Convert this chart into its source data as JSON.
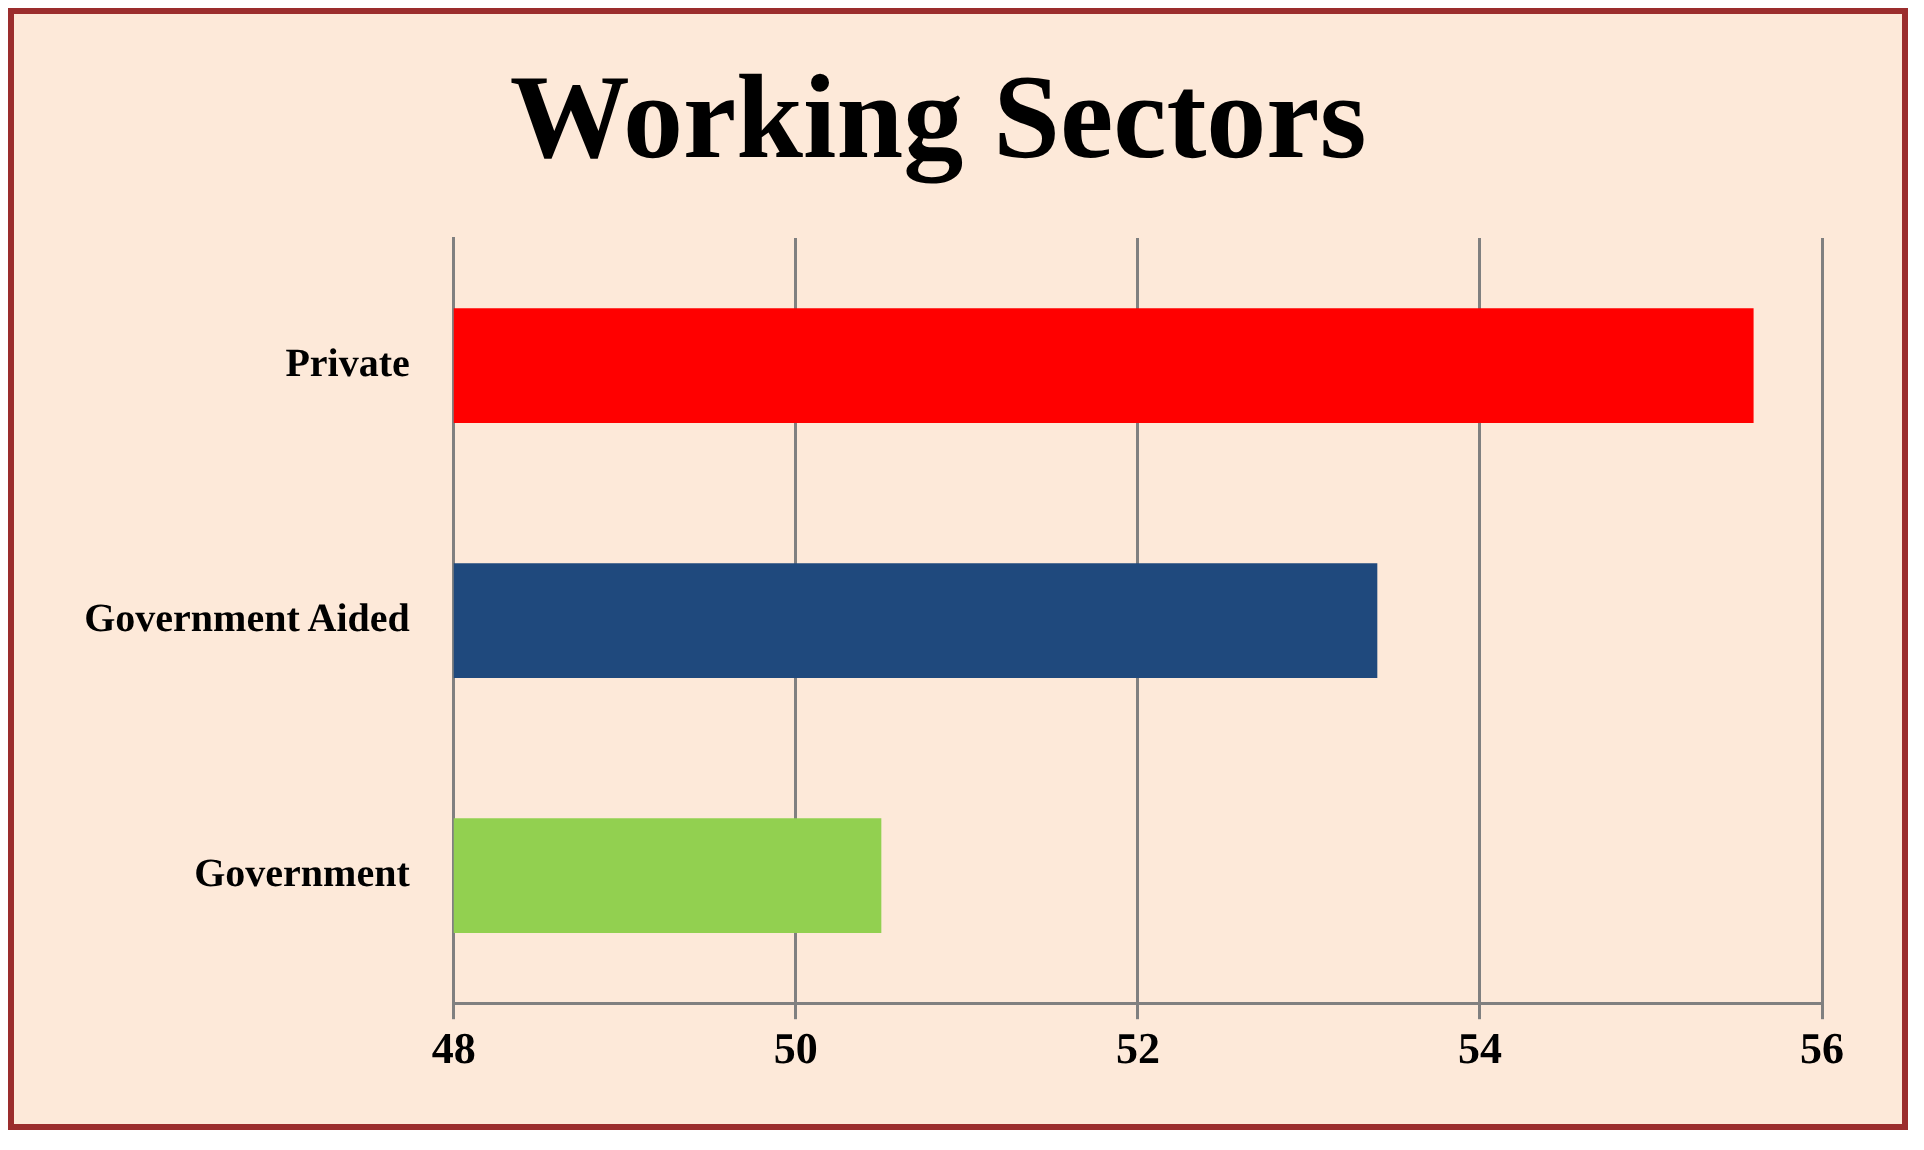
{
  "chart_data": {
    "type": "bar",
    "orientation": "horizontal",
    "title": "Working Sectors",
    "categories": [
      "Private",
      "Government Aided",
      "Government"
    ],
    "values": [
      55.6,
      53.4,
      50.5
    ],
    "colors": [
      "#ff0000",
      "#1f497d",
      "#92d050"
    ],
    "xlim": [
      48,
      56
    ],
    "xticks": [
      48,
      50,
      52,
      54,
      56
    ],
    "grid": "x",
    "legend": false
  }
}
